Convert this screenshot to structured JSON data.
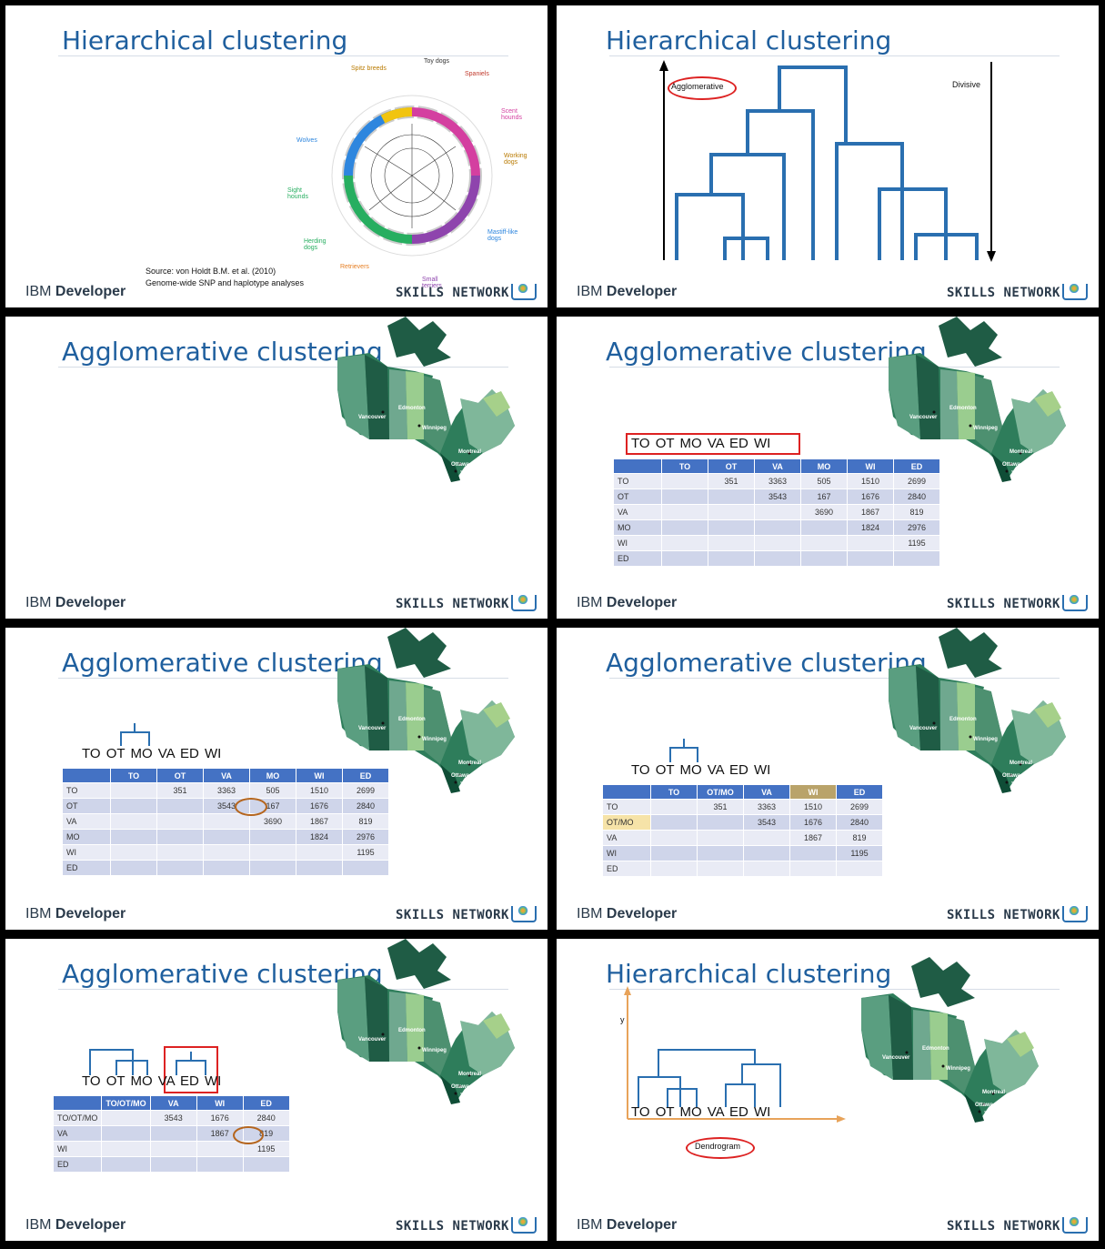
{
  "footer": {
    "ibm_prefix": "IBM",
    "ibm_suffix": "Developer",
    "skills": "SKILLS NETWORK"
  },
  "slides": [
    {
      "title": "Hierarchical clustering",
      "source_line1": "Source: von Holdt B.M. et al. (2010)",
      "source_line2": "Genome-wide SNP and haplotype analyses",
      "groups": [
        "Toy dogs",
        "Spaniels",
        "Scent hounds",
        "Working dogs",
        "Mastiff-like dogs",
        "Small terriers",
        "Retrievers",
        "Herding dogs",
        "Sight hounds",
        "Wolves",
        "Spitz breeds"
      ]
    },
    {
      "title": "Hierarchical clustering",
      "agglomerative": "Agglomerative",
      "divisive": "Divisive"
    },
    {
      "title": "Agglomerative clustering"
    },
    {
      "title": "Agglomerative clustering",
      "labels": "TO  OT  MO  VA  ED  WI",
      "headers": [
        "",
        "TO",
        "OT",
        "VA",
        "MO",
        "WI",
        "ED"
      ],
      "rows": [
        [
          "TO",
          "",
          "351",
          "3363",
          "505",
          "1510",
          "2699"
        ],
        [
          "OT",
          "",
          "",
          "3543",
          "167",
          "1676",
          "2840"
        ],
        [
          "VA",
          "",
          "",
          "",
          "3690",
          "1867",
          "819"
        ],
        [
          "MO",
          "",
          "",
          "",
          "",
          "1824",
          "2976"
        ],
        [
          "WI",
          "",
          "",
          "",
          "",
          "",
          "1195"
        ],
        [
          "ED",
          "",
          "",
          "",
          "",
          "",
          ""
        ]
      ]
    },
    {
      "title": "Agglomerative clustering",
      "labels": "TO  OT  MO  VA  ED  WI",
      "headers": [
        "",
        "TO",
        "OT",
        "VA",
        "MO",
        "WI",
        "ED"
      ],
      "rows": [
        [
          "TO",
          "",
          "351",
          "3363",
          "505",
          "1510",
          "2699"
        ],
        [
          "OT",
          "",
          "",
          "3543",
          "167",
          "1676",
          "2840"
        ],
        [
          "VA",
          "",
          "",
          "",
          "3690",
          "1867",
          "819"
        ],
        [
          "MO",
          "",
          "",
          "",
          "",
          "1824",
          "2976"
        ],
        [
          "WI",
          "",
          "",
          "",
          "",
          "",
          "1195"
        ],
        [
          "ED",
          "",
          "",
          "",
          "",
          "",
          ""
        ]
      ]
    },
    {
      "title": "Agglomerative clustering",
      "labels": "TO  OT  MO  VA  ED  WI",
      "headers": [
        "",
        "TO",
        "OT/MO",
        "VA",
        "WI",
        "ED"
      ],
      "rows": [
        [
          "TO",
          "",
          "351",
          "3363",
          "1510",
          "2699"
        ],
        [
          "OT/MO",
          "",
          "",
          "3543",
          "1676",
          "2840"
        ],
        [
          "VA",
          "",
          "",
          "",
          "1867",
          "819"
        ],
        [
          "WI",
          "",
          "",
          "",
          "",
          "1195"
        ],
        [
          "ED",
          "",
          "",
          "",
          "",
          ""
        ]
      ]
    },
    {
      "title": "Agglomerative clustering",
      "labels": "TO  OT  MO  VA  ED  WI",
      "headers": [
        "",
        "TO/OT/MO",
        "VA",
        "WI",
        "ED"
      ],
      "rows": [
        [
          "TO/OT/MO",
          "",
          "3543",
          "1676",
          "2840"
        ],
        [
          "VA",
          "",
          "",
          "1867",
          "819"
        ],
        [
          "WI",
          "",
          "",
          "",
          "1195"
        ],
        [
          "ED",
          "",
          "",
          "",
          ""
        ]
      ]
    },
    {
      "title": "Hierarchical clustering",
      "labels": "TO  OT  MO  VA  ED  WI",
      "y": "y",
      "dendrogram": "Dendrogram"
    }
  ],
  "cities": {
    "vancouver": "Vancouver",
    "edmonton": "Edmonton",
    "winnipeg": "Winnipeg",
    "montreal": "Montreal",
    "ottawa": "Ottawa",
    "toronto": "Toronto"
  },
  "colors": {
    "title": "#1f5f9e",
    "dendro": "#2a6fb0",
    "header": "#4472c4",
    "highlight": "#d22"
  }
}
